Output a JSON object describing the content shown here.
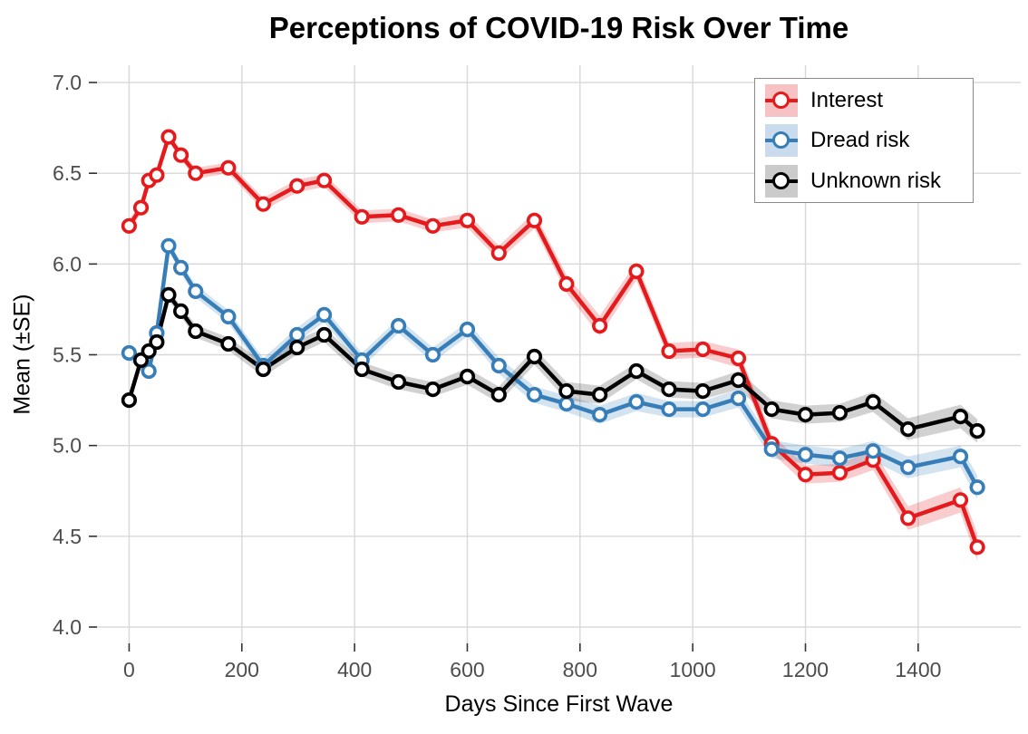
{
  "chart_data": {
    "type": "line",
    "title": "Perceptions of COVID-19 Risk Over Time",
    "xlabel": "Days Since First Wave",
    "ylabel": "Mean (±SE)",
    "x_ticks": [
      0,
      200,
      400,
      600,
      800,
      1000,
      1200,
      1400
    ],
    "x_tick_labels": [
      "0",
      "200",
      "400",
      "600",
      "800",
      "1000",
      "1200",
      "1400"
    ],
    "y_ticks": [
      4.0,
      4.5,
      5.0,
      5.5,
      6.0,
      6.5,
      7.0
    ],
    "y_tick_labels": [
      "4.0",
      "4.5",
      "5.0",
      "5.5",
      "6.0",
      "6.5",
      "7.0"
    ],
    "xlim": [
      -57,
      1582
    ],
    "ylim": [
      3.91,
      7.095
    ],
    "grid": true,
    "legend_position": "top-right",
    "series": [
      {
        "name": "Interest",
        "color": "#E41A1C",
        "ribbon_opacity": 0.22,
        "legend_fill": "#F6C2C3",
        "days": [
          0,
          21,
          35,
          49,
          70,
          92,
          118,
          176,
          238,
          298,
          346,
          413,
          478,
          539,
          600,
          656,
          719,
          776,
          835,
          900,
          958,
          1018,
          1081,
          1140,
          1200,
          1261,
          1320,
          1382,
          1475,
          1505
        ],
        "values": [
          6.21,
          6.31,
          6.46,
          6.49,
          6.7,
          6.6,
          6.5,
          6.53,
          6.33,
          6.43,
          6.46,
          6.26,
          6.27,
          6.21,
          6.24,
          6.06,
          6.24,
          5.89,
          5.66,
          5.96,
          5.52,
          5.53,
          5.48,
          5.01,
          4.84,
          4.85,
          4.92,
          4.6,
          4.7,
          4.44
        ],
        "se": [
          0.035,
          0.03,
          0.03,
          0.03,
          0.025,
          0.025,
          0.03,
          0.03,
          0.035,
          0.035,
          0.035,
          0.035,
          0.035,
          0.035,
          0.04,
          0.04,
          0.045,
          0.05,
          0.055,
          0.05,
          0.045,
          0.045,
          0.05,
          0.05,
          0.05,
          0.05,
          0.055,
          0.065,
          0.07,
          0.075
        ]
      },
      {
        "name": "Dread risk",
        "color": "#377EB8",
        "ribbon_opacity": 0.22,
        "legend_fill": "#C9DBEC",
        "days": [
          0,
          35,
          49,
          70,
          92,
          118,
          176,
          238,
          298,
          346,
          413,
          478,
          539,
          600,
          656,
          719,
          776,
          835,
          900,
          958,
          1018,
          1081,
          1140,
          1200,
          1261,
          1320,
          1382,
          1475,
          1505
        ],
        "values": [
          5.51,
          5.41,
          5.62,
          6.1,
          5.98,
          5.85,
          5.71,
          5.44,
          5.61,
          5.72,
          5.47,
          5.66,
          5.5,
          5.64,
          5.44,
          5.28,
          5.23,
          5.17,
          5.24,
          5.2,
          5.2,
          5.26,
          4.98,
          4.95,
          4.93,
          4.97,
          4.88,
          4.94,
          4.77
        ],
        "se": [
          0.04,
          0.035,
          0.035,
          0.03,
          0.03,
          0.035,
          0.035,
          0.04,
          0.04,
          0.04,
          0.04,
          0.04,
          0.04,
          0.04,
          0.045,
          0.045,
          0.045,
          0.05,
          0.05,
          0.045,
          0.045,
          0.05,
          0.05,
          0.05,
          0.05,
          0.055,
          0.06,
          0.06,
          0.065
        ]
      },
      {
        "name": "Unknown risk",
        "color": "#000000",
        "ribbon_opacity": 0.18,
        "legend_fill": "#CBCBCB",
        "days": [
          0,
          21,
          35,
          49,
          70,
          92,
          118,
          176,
          238,
          298,
          346,
          413,
          478,
          539,
          600,
          656,
          719,
          776,
          835,
          900,
          958,
          1018,
          1081,
          1140,
          1200,
          1261,
          1320,
          1382,
          1475,
          1505
        ],
        "values": [
          5.25,
          5.47,
          5.52,
          5.57,
          5.83,
          5.74,
          5.63,
          5.56,
          5.42,
          5.54,
          5.61,
          5.42,
          5.35,
          5.31,
          5.38,
          5.28,
          5.49,
          5.3,
          5.28,
          5.41,
          5.31,
          5.3,
          5.36,
          5.2,
          5.17,
          5.18,
          5.24,
          5.09,
          5.16,
          5.08
        ],
        "se": [
          0.04,
          0.035,
          0.035,
          0.03,
          0.03,
          0.03,
          0.035,
          0.035,
          0.04,
          0.04,
          0.04,
          0.04,
          0.04,
          0.04,
          0.045,
          0.045,
          0.045,
          0.05,
          0.05,
          0.045,
          0.045,
          0.045,
          0.05,
          0.05,
          0.05,
          0.05,
          0.055,
          0.06,
          0.065,
          0.065
        ]
      }
    ],
    "style": {
      "grid_color": "#D8D8D8",
      "tick_color": "#333333",
      "tick_label_color": "#4D4D4D",
      "background": "#FFFFFF"
    }
  }
}
